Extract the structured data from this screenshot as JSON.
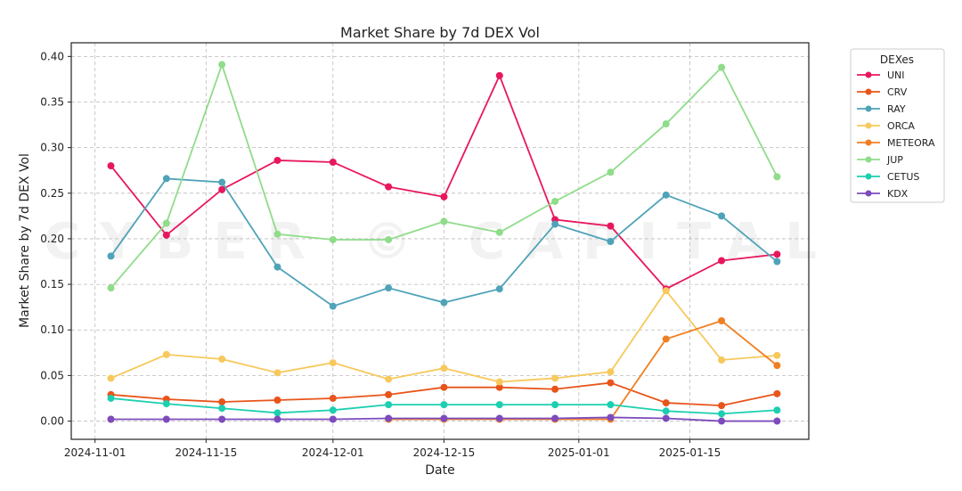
{
  "chart_data": {
    "type": "line",
    "title": "Market Share by 7d DEX Vol",
    "xlabel": "Date",
    "ylabel": "Market Share by 7d DEX Vol",
    "x": [
      "2024-11-03",
      "2024-11-10",
      "2024-11-17",
      "2024-11-24",
      "2024-12-01",
      "2024-12-08",
      "2024-12-15",
      "2024-12-22",
      "2024-12-29",
      "2025-01-05",
      "2025-01-12",
      "2025-01-19",
      "2025-01-26"
    ],
    "xticks": [
      "2024-11-01",
      "2024-11-15",
      "2024-12-01",
      "2024-12-15",
      "2025-01-01",
      "2025-01-15"
    ],
    "yticks": [
      "0.00",
      "0.05",
      "0.10",
      "0.15",
      "0.20",
      "0.25",
      "0.30",
      "0.35",
      "0.40"
    ],
    "xlim": [
      "2024-10-29",
      "2025-01-30"
    ],
    "ylim": [
      -0.02,
      0.415
    ],
    "grid": true,
    "legend": {
      "title": "DEXes",
      "placement": "outside-top-right"
    },
    "series": [
      {
        "name": "UNI",
        "color": "#e8175d",
        "values": [
          0.28,
          0.204,
          0.254,
          0.286,
          0.284,
          0.257,
          0.246,
          0.379,
          0.221,
          0.214,
          0.145,
          0.176,
          0.183
        ]
      },
      {
        "name": "CRV",
        "color": "#e8541a",
        "values": [
          0.029,
          0.024,
          0.021,
          0.023,
          0.025,
          0.029,
          0.037,
          0.037,
          0.035,
          0.042,
          0.02,
          0.017,
          0.03
        ]
      },
      {
        "name": "RAY",
        "color": "#4fa3b8",
        "values": [
          0.181,
          0.266,
          0.262,
          0.169,
          0.126,
          0.146,
          0.13,
          0.145,
          0.216,
          0.197,
          0.248,
          0.225,
          0.175
        ]
      },
      {
        "name": "ORCA",
        "color": "#f7c95c",
        "values": [
          0.047,
          0.073,
          0.068,
          0.053,
          0.064,
          0.046,
          0.058,
          0.043,
          0.047,
          0.054,
          0.143,
          0.067,
          0.072
        ]
      },
      {
        "name": "METEORA",
        "color": "#f07f22",
        "values": [
          0.002,
          null,
          null,
          null,
          null,
          0.002,
          0.002,
          0.002,
          0.002,
          0.002,
          0.09,
          0.11,
          0.061
        ]
      },
      {
        "name": "JUP",
        "color": "#8fdc8a",
        "values": [
          0.146,
          0.217,
          0.391,
          0.205,
          0.199,
          0.199,
          0.219,
          0.207,
          0.241,
          0.273,
          0.326,
          0.388,
          0.268
        ]
      },
      {
        "name": "CETUS",
        "color": "#1ccfb0",
        "values": [
          0.025,
          0.019,
          0.014,
          0.009,
          0.012,
          0.018,
          0.018,
          0.018,
          0.018,
          0.018,
          0.011,
          0.008,
          0.012
        ]
      },
      {
        "name": "KDX",
        "color": "#7d4bbd",
        "values": [
          0.002,
          0.002,
          0.002,
          0.002,
          0.002,
          0.003,
          0.003,
          0.003,
          0.003,
          0.004,
          0.003,
          0.0,
          0.0
        ]
      }
    ]
  },
  "watermark": "CYBER © CAPITAL"
}
